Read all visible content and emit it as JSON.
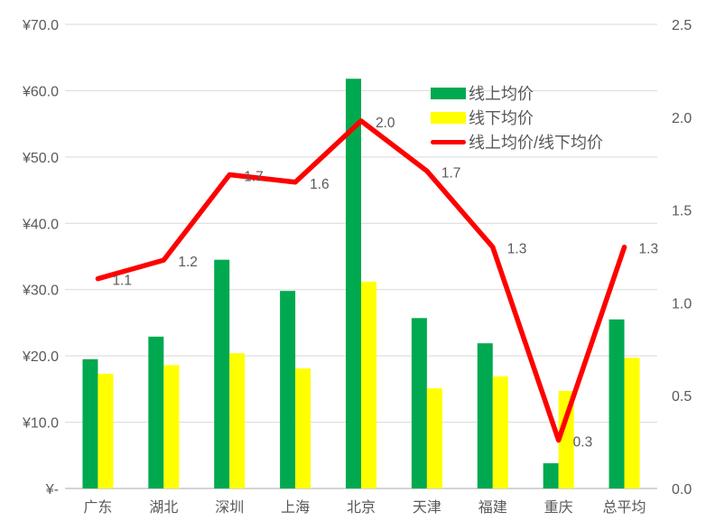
{
  "chart_data": {
    "type": "bar",
    "subtype": "combo-bar-line-dual-axis",
    "title": "",
    "categories": [
      "广东",
      "湖北",
      "深圳",
      "上海",
      "北京",
      "天津",
      "福建",
      "重庆",
      "总平均"
    ],
    "series": [
      {
        "name": "线上均价",
        "type": "bar",
        "axis": "left",
        "color": "#00A94F",
        "values": [
          19.5,
          22.9,
          34.5,
          29.8,
          61.8,
          25.7,
          21.9,
          3.8,
          25.5
        ]
      },
      {
        "name": "线下均价",
        "type": "bar",
        "axis": "left",
        "color": "#FFFF00",
        "values": [
          17.3,
          18.6,
          20.4,
          18.1,
          31.2,
          15.1,
          16.9,
          14.7,
          19.7
        ]
      },
      {
        "name": "线上均价/线下均价",
        "type": "line",
        "axis": "right",
        "color": "#FF0000",
        "values": [
          1.13,
          1.23,
          1.69,
          1.65,
          1.98,
          1.71,
          1.3,
          0.26,
          1.3
        ],
        "labels": [
          "1.1",
          "1.2",
          "1.7",
          "1.6",
          "2.0",
          "1.7",
          "1.3",
          "0.3",
          "1.3"
        ]
      }
    ],
    "left_axis": {
      "ticks": [
        "¥70.0",
        "¥60.0",
        "¥50.0",
        "¥40.0",
        "¥30.0",
        "¥20.0",
        "¥10.0",
        "¥-"
      ],
      "tick_values": [
        70,
        60,
        50,
        40,
        30,
        20,
        10,
        0
      ],
      "min": 0,
      "max": 70
    },
    "right_axis": {
      "ticks": [
        "2.5",
        "2.0",
        "1.5",
        "1.0",
        "0.5",
        "0.0"
      ],
      "tick_values": [
        2.5,
        2.0,
        1.5,
        1.0,
        0.5,
        0.0
      ],
      "min": 0,
      "max": 2.5
    },
    "grid": true,
    "legend_position": "inside-top-right"
  },
  "colors": {
    "background": "#FFFFFF",
    "gridline": "#D9D9D9",
    "axis_line": "#C6C6C6",
    "text": "#595959",
    "bar_green": "#00A94F",
    "bar_yellow": "#FFFF00",
    "line_red": "#FF0000"
  }
}
